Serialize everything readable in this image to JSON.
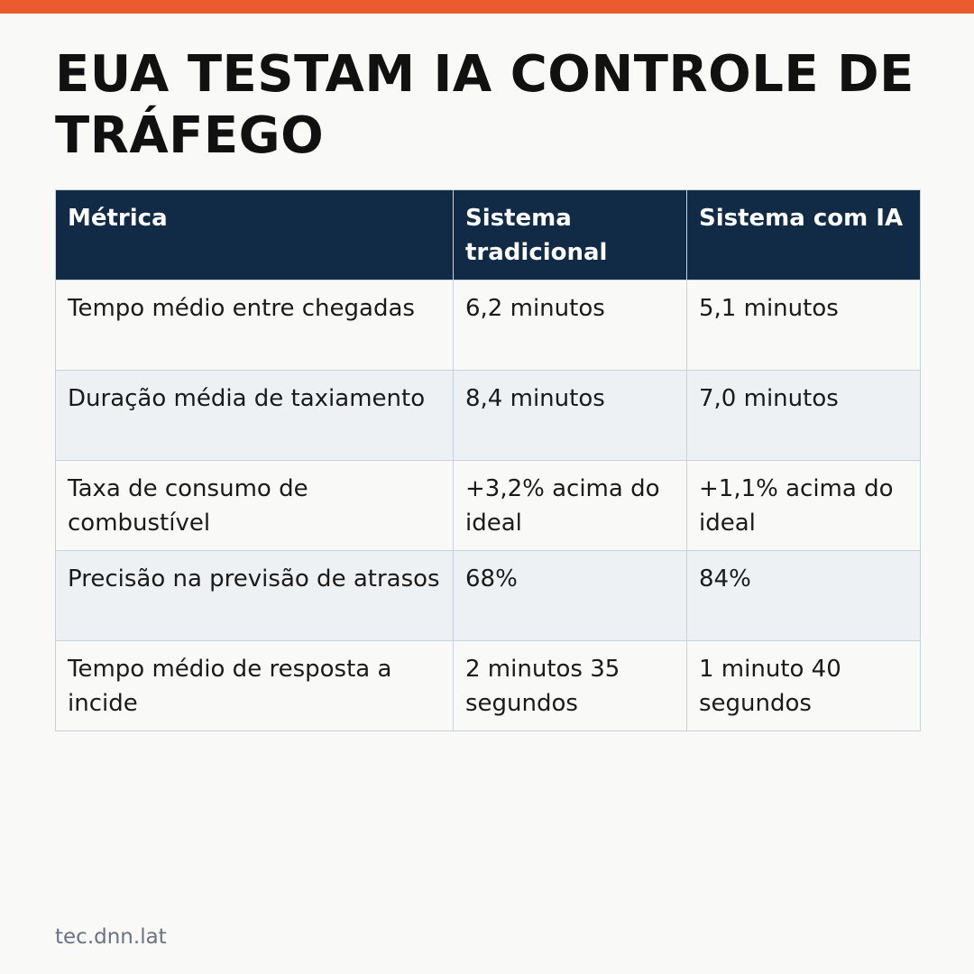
{
  "colors": {
    "accent_bar": "#ea5c2f",
    "header_background": "#112a45",
    "page_background": "#f9f9f7",
    "alt_row_background": "#edf1f4"
  },
  "title": "EUA TESTAM IA CONTROLE DE TRÁFEGO",
  "table": {
    "headers": [
      "Métrica",
      "Sistema tradicional",
      "Sistema com IA"
    ],
    "rows": [
      {
        "metric": "Tempo médio entre chegadas",
        "traditional": "6,2 minutos",
        "ai": "5,1 minutos"
      },
      {
        "metric": "Duração média de taxiamento",
        "traditional": "8,4 minutos",
        "ai": "7,0 minutos"
      },
      {
        "metric": "Taxa de consumo de combustível",
        "traditional": "+3,2% acima do ideal",
        "ai": "+1,1% acima do ideal"
      },
      {
        "metric": "Precisão na previsão de atrasos",
        "traditional": "68%",
        "ai": "84%"
      },
      {
        "metric": "Tempo médio de resposta a incide",
        "traditional": "2 minutos 35 segundos",
        "ai": "1 minuto 40 segundos"
      }
    ]
  },
  "footer": {
    "source": "tec.dnn.lat"
  }
}
